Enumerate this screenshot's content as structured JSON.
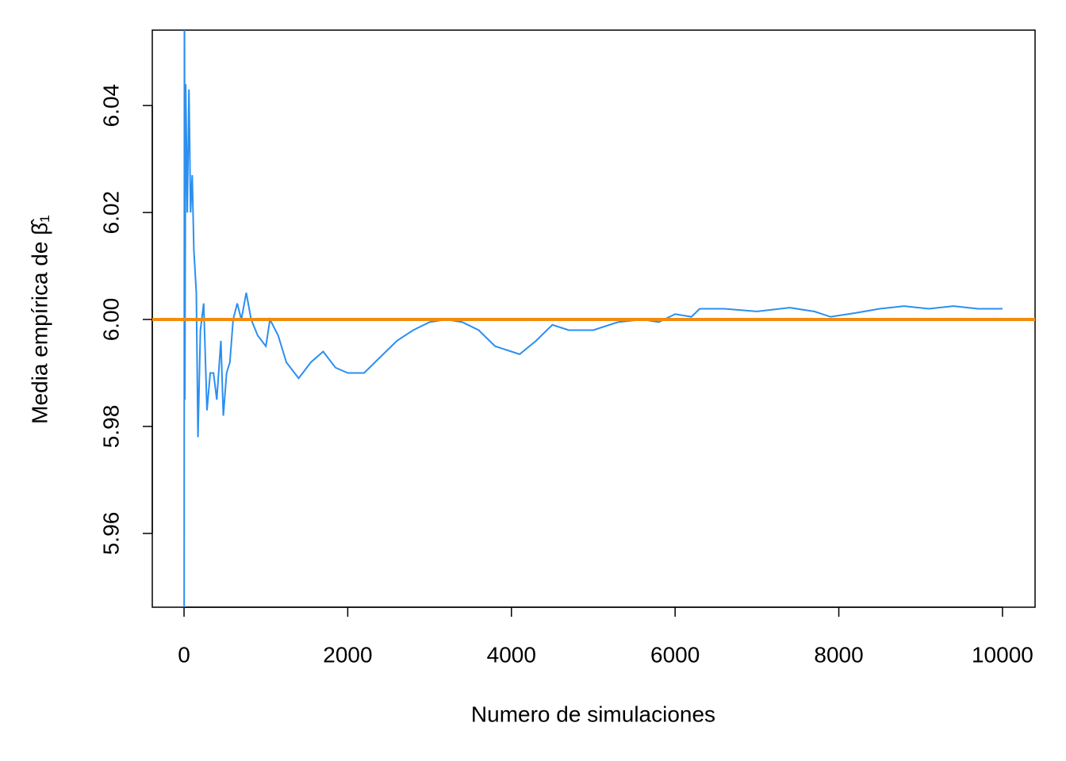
{
  "chart_data": {
    "type": "line",
    "xlabel": "Numero de simulaciones",
    "ylabel": "Media empírica de β̂₁",
    "x": [
      1,
      5,
      10,
      20,
      40,
      60,
      80,
      100,
      120,
      150,
      170,
      200,
      240,
      280,
      320,
      360,
      400,
      450,
      480,
      520,
      560,
      600,
      650,
      700,
      760,
      820,
      900,
      1000,
      1050,
      1150,
      1250,
      1400,
      1550,
      1700,
      1850,
      2000,
      2200,
      2400,
      2600,
      2800,
      3000,
      3200,
      3400,
      3600,
      3800,
      4000,
      4100,
      4300,
      4500,
      4700,
      5000,
      5300,
      5600,
      5800,
      6000,
      6200,
      6300,
      6600,
      7000,
      7400,
      7700,
      7900,
      8200,
      8500,
      8800,
      9100,
      9400,
      9700,
      10000
    ],
    "series": [
      {
        "color": "#2b8ff0",
        "values": [
          5.93,
          6.07,
          5.985,
          6.044,
          6.02,
          6.043,
          6.02,
          6.027,
          6.013,
          6.005,
          5.978,
          5.998,
          6.003,
          5.983,
          5.99,
          5.99,
          5.985,
          5.996,
          5.982,
          5.99,
          5.992,
          6.0,
          6.003,
          6.0,
          6.005,
          6.0,
          5.997,
          5.995,
          6.0,
          5.997,
          5.992,
          5.989,
          5.992,
          5.994,
          5.991,
          5.99,
          5.99,
          5.993,
          5.996,
          5.998,
          5.9995,
          6.0,
          5.9995,
          5.998,
          5.995,
          5.994,
          5.9935,
          5.996,
          5.999,
          5.998,
          5.998,
          5.9995,
          6.0,
          5.9995,
          6.001,
          6.0005,
          6.002,
          6.002,
          6.0015,
          6.0022,
          6.0015,
          6.0005,
          6.0012,
          6.002,
          6.0025,
          6.002,
          6.0025,
          6.002,
          6.002
        ]
      }
    ],
    "hline": {
      "value": 6,
      "color": "#f28c0f"
    },
    "xlim": [
      -388,
      10398
    ],
    "ylim": [
      5.9462,
      6.0541
    ],
    "xticks": [
      0,
      2000,
      4000,
      6000,
      8000,
      10000
    ],
    "yticks": [
      5.96,
      5.98,
      {
        "value": 6,
        "label": "6.00"
      },
      6.02,
      6.04
    ],
    "grid": false
  }
}
